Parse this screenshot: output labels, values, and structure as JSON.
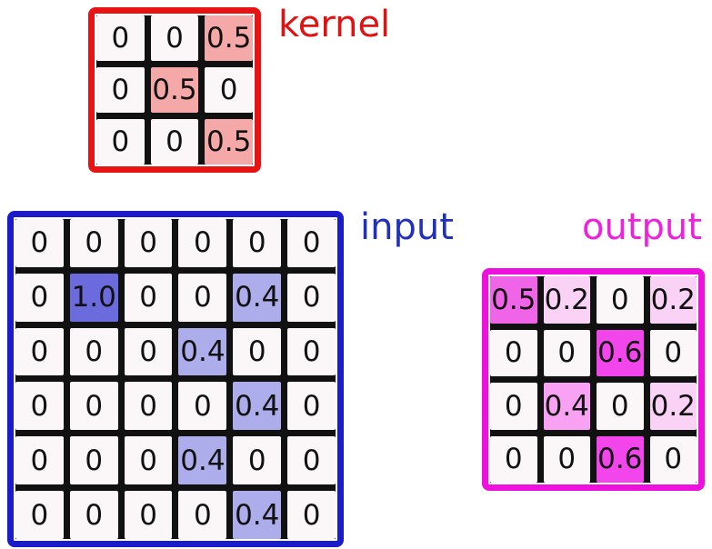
{
  "labels": {
    "kernel": "kernel",
    "input": "input",
    "output": "output"
  },
  "colors": {
    "background": "#ffffff",
    "kernel_border": "#e81313",
    "kernel_label": "#e01212",
    "input_border": "#1a1ccc",
    "input_label": "#2231bb",
    "output_border": "#ee10dd",
    "output_label": "#ee22dd",
    "grid_line": "#111111",
    "cell_base": "#fbf6f8",
    "cell_text": "#111111"
  },
  "grids": {
    "kernel": {
      "rows": [
        [
          "0",
          "0",
          "0.5"
        ],
        [
          "0",
          "0.5",
          "0"
        ],
        [
          "0",
          "0",
          "0.5"
        ]
      ],
      "value_colors": {
        "0": "#fbf6f8",
        "0.5": "#f5a8a8"
      }
    },
    "input": {
      "rows": [
        [
          "0",
          "0",
          "0",
          "0",
          "0",
          "0"
        ],
        [
          "0",
          "1.0",
          "0",
          "0",
          "0.4",
          "0"
        ],
        [
          "0",
          "0",
          "0",
          "0.4",
          "0",
          "0"
        ],
        [
          "0",
          "0",
          "0",
          "0",
          "0.4",
          "0"
        ],
        [
          "0",
          "0",
          "0",
          "0.4",
          "0",
          "0"
        ],
        [
          "0",
          "0",
          "0",
          "0",
          "0.4",
          "0"
        ]
      ],
      "value_colors": {
        "0": "#fbf6f8",
        "1.0": "#6b6bde",
        "0.4": "#adadec"
      }
    },
    "output": {
      "rows": [
        [
          "0.5",
          "0.2",
          "0",
          "0.2"
        ],
        [
          "0",
          "0",
          "0.6",
          "0"
        ],
        [
          "0",
          "0.4",
          "0",
          "0.2"
        ],
        [
          "0",
          "0",
          "0.6",
          "0"
        ]
      ],
      "value_colors": {
        "0": "#fbf6f8",
        "0.2": "#f9d2f6",
        "0.4": "#f9a2f3",
        "0.5": "#f065e8",
        "0.6": "#f246ec"
      }
    }
  }
}
